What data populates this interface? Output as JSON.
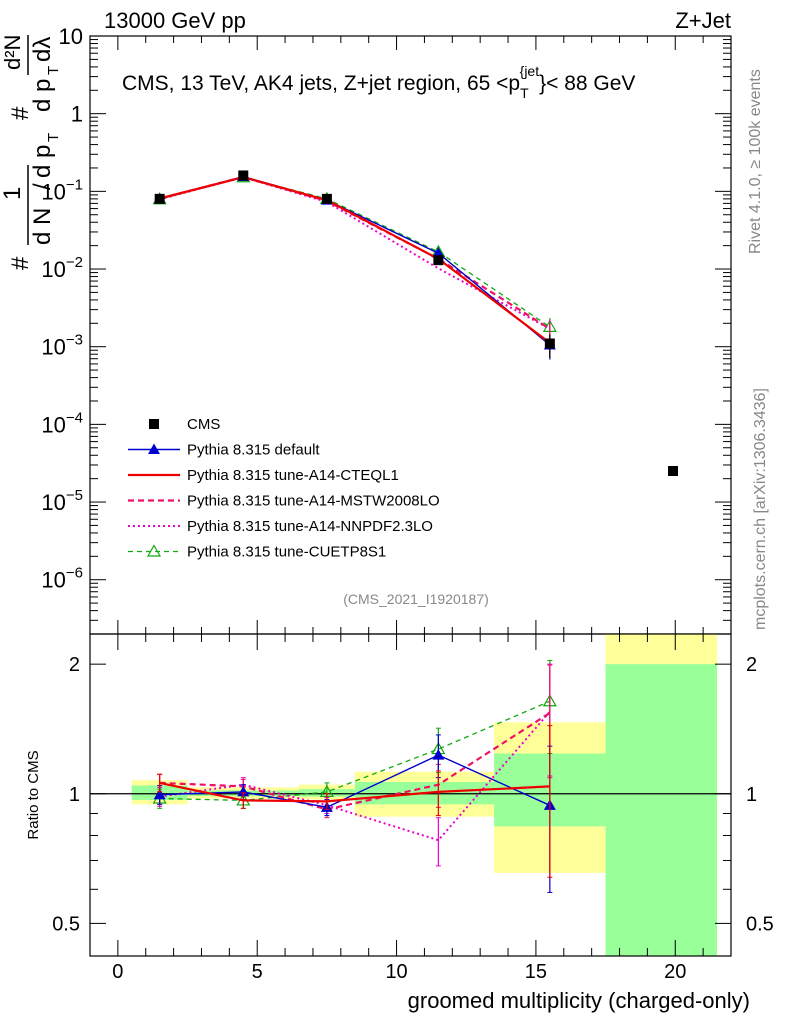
{
  "header": {
    "left": "13000 GeV pp",
    "right": "Z+Jet"
  },
  "side_labels": {
    "rivet": "Rivet 4.1.0, ≥ 100k events",
    "mcplots": "mcplots.cern.ch [arXiv:1306.3436]"
  },
  "analysis_tag": "(CMS_2021_I1920187)",
  "colors": {
    "cms": "#000000",
    "default": "#0000cc",
    "cteql1": "#ee0000",
    "mstw": "#ee1166",
    "nnpdf": "#ee00cc",
    "cuetp8s1": "#11aa11",
    "band_yellow": "#ffff99",
    "band_green": "#99ff99"
  },
  "chart_data": [
    {
      "type": "line",
      "panel": "main",
      "title": "CMS, 13 TeV, AK4 jets, Z+jet region, 65 <p_T^{jet}< 88 GeV",
      "title_parts": {
        "main": "CMS, 13 TeV, AK4 jets, Z+jet region, 65 <p",
        "sub": "T",
        "sup": "{jet",
        "end": "}< 88 GeV"
      },
      "ylabel": "1/(dN/dpT) d²N/(dpT dλ)",
      "ylabel_parts": {
        "hash": "#",
        "one": "1",
        "dN": "d N",
        "slash": "/",
        "dp": "d p",
        "T": "T",
        "d2N": "d²N",
        "dpdl": "d p",
        "dl": "dλ"
      },
      "yscale": "log",
      "ylim": [
        2e-07,
        10
      ],
      "xlim": [
        -1,
        22
      ],
      "y_ticks": [
        {
          "v": 10,
          "base": "10",
          "exp": ""
        },
        {
          "v": 1,
          "base": "1",
          "exp": ""
        },
        {
          "v": 0.1,
          "base": "10",
          "exp": "−1"
        },
        {
          "v": 0.01,
          "base": "10",
          "exp": "−2"
        },
        {
          "v": 0.001,
          "base": "10",
          "exp": "−3"
        },
        {
          "v": 0.0001,
          "base": "10",
          "exp": "−4"
        },
        {
          "v": 1e-05,
          "base": "10",
          "exp": "−5"
        },
        {
          "v": 1e-06,
          "base": "10",
          "exp": "−6"
        }
      ],
      "bins": [
        [
          0.5,
          2.5
        ],
        [
          2.5,
          6.5
        ],
        [
          6.5,
          8.5
        ],
        [
          8.5,
          13.5
        ],
        [
          13.5,
          17.5
        ],
        [
          17.5,
          21.5
        ]
      ],
      "x": [
        1.5,
        4.5,
        7.5,
        11.5,
        15.5
      ],
      "series": [
        {
          "name": "CMS",
          "key": "cms",
          "values": [
            0.08,
            0.16,
            0.08,
            0.013,
            0.0011
          ]
        },
        {
          "name": "Pythia 8.315 default",
          "key": "default",
          "values": [
            0.08,
            0.155,
            0.077,
            0.016,
            0.00105
          ]
        },
        {
          "name": "Pythia 8.315 tune-A14-CTEQL1",
          "key": "cteql1",
          "values": [
            0.081,
            0.152,
            0.077,
            0.0135,
            0.00112
          ]
        },
        {
          "name": "Pythia 8.315 tune-A14-MSTW2008LO",
          "key": "mstw",
          "values": [
            0.081,
            0.153,
            0.075,
            0.0135,
            0.0017
          ]
        },
        {
          "name": "Pythia 8.315 tune-A14-NNPDF2.3LO",
          "key": "nnpdf",
          "values": [
            0.079,
            0.152,
            0.073,
            0.0102,
            0.0017
          ]
        },
        {
          "name": "Pythia 8.315 tune-CUETP8S1",
          "key": "cuetp8s1",
          "values": [
            0.079,
            0.152,
            0.08,
            0.0166,
            0.0018
          ]
        }
      ],
      "legend": {
        "placement": "lower-left",
        "extra_marker_note": "CMS"
      }
    },
    {
      "type": "line",
      "panel": "ratio",
      "ylabel": "Ratio to CMS",
      "xlabel": "groomed multiplicity (charged-only)",
      "yscale": "log",
      "ylim": [
        0.42,
        2.35
      ],
      "xlim": [
        -1,
        22
      ],
      "x_ticks": [
        0,
        5,
        10,
        15,
        20
      ],
      "y_ticks": [
        0.5,
        1,
        2
      ],
      "reference": 1.0,
      "bands": [
        {
          "x": [
            0.5,
            2.5
          ],
          "yellow": [
            0.945,
            1.075
          ],
          "green": [
            0.968,
            1.045
          ]
        },
        {
          "x": [
            2.5,
            6.5
          ],
          "yellow": [
            0.975,
            1.035
          ],
          "green": [
            0.988,
            1.018
          ]
        },
        {
          "x": [
            6.5,
            8.5
          ],
          "yellow": [
            0.97,
            1.05
          ],
          "green": [
            0.985,
            1.025
          ]
        },
        {
          "x": [
            8.5,
            13.5
          ],
          "yellow": [
            0.885,
            1.125
          ],
          "green": [
            0.945,
            1.065
          ]
        },
        {
          "x": [
            13.5,
            17.5
          ],
          "yellow": [
            0.655,
            1.465
          ],
          "green": [
            0.84,
            1.24
          ]
        },
        {
          "x": [
            17.5,
            21.5
          ],
          "yellow": [
            0.42,
            2.35
          ],
          "green": [
            0.42,
            2.0
          ]
        }
      ],
      "x": [
        1.5,
        4.5,
        7.5,
        11.5,
        15.5
      ],
      "series": [
        {
          "name": "Pythia 8.315 default",
          "key": "default",
          "values": [
            0.995,
            1.01,
            0.93,
            1.23,
            0.94
          ],
          "errors": [
            0.05,
            0.04,
            0.04,
            0.14,
            0.35
          ]
        },
        {
          "name": "Pythia 8.315 tune-A14-CTEQL1",
          "key": "cteql1",
          "values": [
            1.06,
            0.965,
            0.96,
            1.01,
            1.04
          ],
          "errors": [
            0.05,
            0.04,
            0.04,
            0.12,
            0.4
          ]
        },
        {
          "name": "Pythia 8.315 tune-A14-MSTW2008LO",
          "key": "mstw",
          "values": [
            1.06,
            1.04,
            0.92,
            1.05,
            1.54
          ],
          "errors": [
            0.05,
            0.04,
            0.04,
            0.12,
            0.45
          ]
        },
        {
          "name": "Pythia 8.315 tune-A14-NNPDF2.3LO",
          "key": "nnpdf",
          "values": [
            0.985,
            1.05,
            0.94,
            0.78,
            1.55
          ],
          "errors": [
            0.05,
            0.04,
            0.04,
            0.1,
            0.45
          ]
        },
        {
          "name": "Pythia 8.315 tune-CUETP8S1",
          "key": "cuetp8s1",
          "values": [
            0.975,
            0.965,
            1.01,
            1.27,
            1.64
          ],
          "errors": [
            0.05,
            0.04,
            0.05,
            0.15,
            0.4
          ]
        }
      ]
    }
  ]
}
